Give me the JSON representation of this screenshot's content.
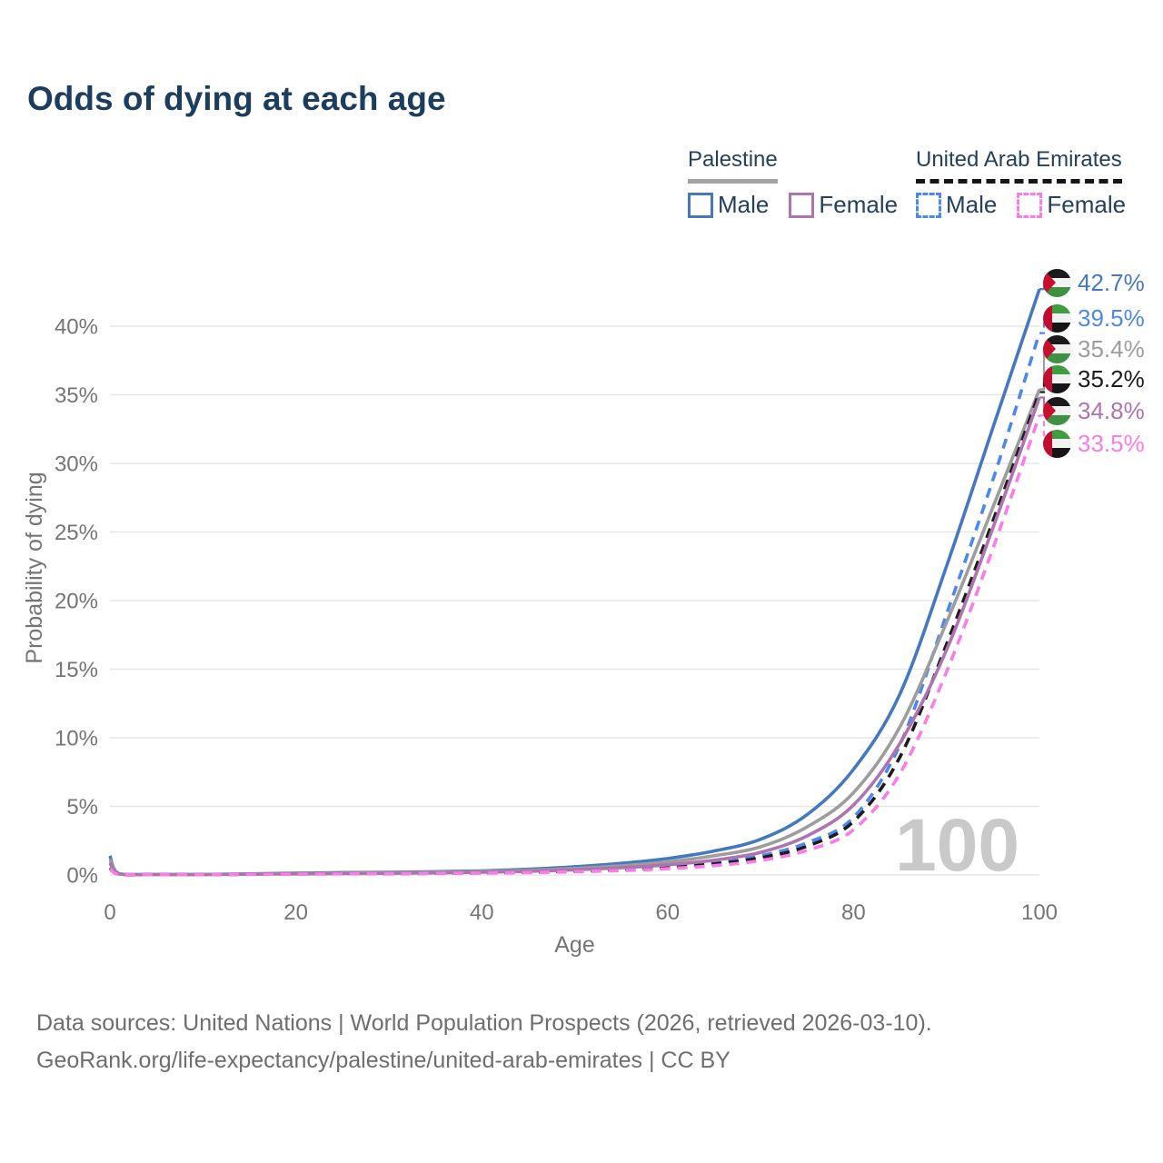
{
  "title": "Odds of dying at each age",
  "legend": {
    "groups": [
      {
        "label": "Palestine",
        "line_style": "solid",
        "underline_color": "#a3a3a3",
        "items": [
          {
            "label": "Male",
            "color": "#4678be",
            "dashed": false
          },
          {
            "label": "Female",
            "color": "#ad74ae",
            "dashed": false
          }
        ]
      },
      {
        "label": "United Arab Emirates",
        "line_style": "dashed",
        "underline_color": "#161616",
        "items": [
          {
            "label": "Male",
            "color": "#4d87f0",
            "dashed": true
          },
          {
            "label": "Female",
            "color": "#fa7ce8",
            "dashed": true
          }
        ]
      }
    ]
  },
  "chart_data": {
    "type": "line",
    "title": "Odds of dying at each age",
    "xlabel": "Age",
    "ylabel": "Probability of dying",
    "x_ticks": [
      0,
      20,
      40,
      60,
      80,
      100
    ],
    "y_ticks_percent": [
      0,
      5,
      10,
      15,
      20,
      25,
      30,
      35,
      40
    ],
    "xlim": [
      0,
      100
    ],
    "ylim_percent": [
      0,
      44
    ],
    "grid": "horizontal",
    "age_watermark": "100",
    "x": [
      0,
      1,
      5,
      10,
      15,
      20,
      25,
      30,
      35,
      40,
      45,
      50,
      55,
      60,
      65,
      70,
      75,
      80,
      85,
      90,
      95,
      100
    ],
    "series": [
      {
        "name": "Palestine Male",
        "country": "Palestine",
        "sex": "Male",
        "color": "#4678be",
        "dash": false,
        "flag": "ps",
        "end_label": "42.7%",
        "values": [
          1.4,
          0.09,
          0.04,
          0.04,
          0.08,
          0.14,
          0.17,
          0.2,
          0.24,
          0.3,
          0.42,
          0.6,
          0.85,
          1.2,
          1.75,
          2.6,
          4.4,
          7.7,
          13.2,
          22.5,
          32.6,
          42.7
        ]
      },
      {
        "name": "United Arab Emirates Male",
        "country": "United Arab Emirates",
        "sex": "Male",
        "color": "#4d87f0",
        "dash": true,
        "flag": "uae",
        "end_label": "39.5%",
        "values": [
          0.55,
          0.05,
          0.03,
          0.03,
          0.05,
          0.09,
          0.11,
          0.12,
          0.14,
          0.17,
          0.22,
          0.3,
          0.42,
          0.6,
          0.9,
          1.4,
          2.35,
          4.2,
          9.5,
          19.0,
          28.8,
          39.5
        ]
      },
      {
        "name": "Palestine Both sexes",
        "country": "Palestine",
        "sex": "Both",
        "color": "#9d9d9d",
        "dash": false,
        "flag": "ps",
        "end_label": "35.4%",
        "values": [
          1.15,
          0.08,
          0.04,
          0.04,
          0.06,
          0.11,
          0.14,
          0.16,
          0.19,
          0.25,
          0.34,
          0.48,
          0.67,
          0.95,
          1.4,
          2.05,
          3.5,
          6.0,
          10.8,
          18.4,
          26.8,
          35.4
        ]
      },
      {
        "name": "United Arab Emirates Both sexes",
        "country": "United Arab Emirates",
        "sex": "Both",
        "color": "#1c1c1c",
        "dash": true,
        "flag": "uae",
        "end_label": "35.2%",
        "values": [
          0.5,
          0.05,
          0.03,
          0.03,
          0.05,
          0.08,
          0.09,
          0.1,
          0.12,
          0.15,
          0.2,
          0.27,
          0.38,
          0.54,
          0.8,
          1.25,
          2.1,
          3.9,
          8.6,
          16.8,
          25.8,
          35.2
        ]
      },
      {
        "name": "Palestine Female",
        "country": "Palestine",
        "sex": "Female",
        "color": "#ad74ae",
        "dash": false,
        "flag": "ps",
        "end_label": "34.8%",
        "values": [
          0.9,
          0.07,
          0.03,
          0.03,
          0.05,
          0.08,
          0.1,
          0.12,
          0.15,
          0.2,
          0.27,
          0.38,
          0.53,
          0.74,
          1.08,
          1.65,
          2.85,
          5.1,
          9.6,
          16.4,
          25.3,
          34.8
        ]
      },
      {
        "name": "United Arab Emirates Female",
        "country": "United Arab Emirates",
        "sex": "Female",
        "color": "#fa7ce8",
        "dash": true,
        "flag": "uae",
        "end_label": "33.5%",
        "values": [
          0.45,
          0.04,
          0.02,
          0.02,
          0.04,
          0.06,
          0.08,
          0.09,
          0.11,
          0.13,
          0.17,
          0.23,
          0.32,
          0.46,
          0.68,
          1.05,
          1.8,
          3.3,
          7.4,
          14.8,
          23.8,
          33.5
        ]
      }
    ],
    "legend_position": "top-right"
  },
  "footer": {
    "line1": "Data sources: United Nations | World Population Prospects (2026, retrieved 2026-03-10).",
    "line2": "GeoRank.org/life-expectancy/palestine/united-arab-emirates | CC BY"
  },
  "colors": {
    "title_text": "#1d3d5e",
    "legend_text": "#24405e",
    "axis_text": "#757575",
    "gridline": "#e7e7e7",
    "watermark": "#c9c9c9",
    "footer_text": "#6e6e6e"
  }
}
